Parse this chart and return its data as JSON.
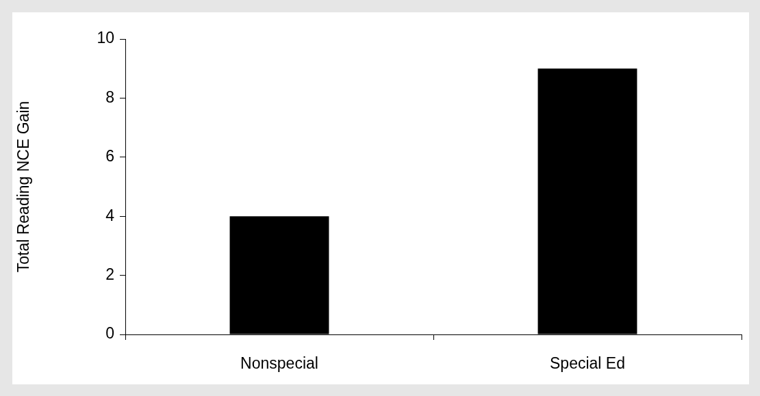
{
  "chart_data": {
    "type": "bar",
    "categories": [
      "Nonspecial",
      "Special Ed"
    ],
    "values": [
      4,
      9
    ],
    "color": "#000000",
    "ylabel": "Total Reading NCE Gain",
    "ylim": [
      0,
      10
    ],
    "yticks": [
      0,
      2,
      4,
      6,
      8,
      10
    ]
  }
}
